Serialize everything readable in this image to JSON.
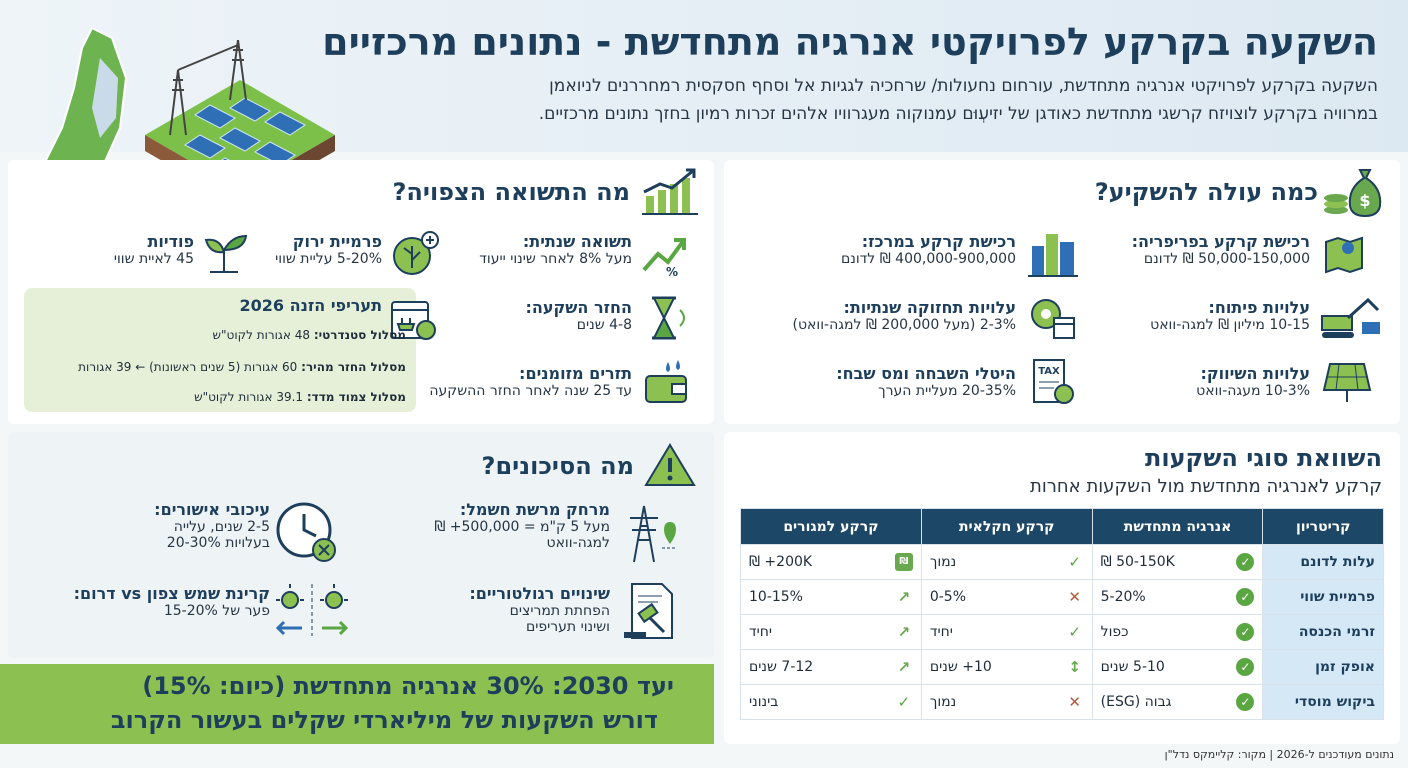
{
  "header": {
    "title": "השקעה בקרקע לפרויקטי אנרגיה מתחדשת - נתונים מרכזיים",
    "subtitle_1": "השקעה בקרקע לפרויקטי אנרגיה מתחדשת, עורחום נחעולות/ שרחכיה לגגיות אל וסחף חסקסית רמחררנים לניואמן",
    "subtitle_2": "במרוויה בקרקע לוצויזח קרשגי מתחדשת כאודגן של יזיעְוּם עמנוקוה מעגרוויו אלהים זכרות רמיון בחזך נתונים מרכזיים."
  },
  "cost": {
    "title": "כמה עולה להשקיע?",
    "items": [
      {
        "title": "רכישת קרקע בפריפריה:",
        "value": "50,000-150,000 ₪ לדונם"
      },
      {
        "title": "רכישת קרקע במרכז:",
        "value": "400,000-900,000 ₪ לדונם"
      },
      {
        "title": "עלויות פיתוח:",
        "value": "10-15 מיליון ₪ למגה-וואט"
      },
      {
        "title": "עלויות תחזוקה שנתיות:",
        "value": "2-3% (מעל 200,000 ₪ למגה-וואט)"
      },
      {
        "title": "עלויות השיווק:",
        "value": "10-3% מעגה-וואט"
      },
      {
        "title": "היטלי השבחה ומס שבח:",
        "value": "20-35% מעליית הערך"
      }
    ]
  },
  "returns": {
    "title": "מה התשואה הצפויה?",
    "items": [
      {
        "title": "תשואה שנתית:",
        "value": "מעל 8% לאחר שינוי ייעוד"
      },
      {
        "title": "פרמיית ירוק",
        "value": "5-20% עליית שווי"
      },
      {
        "title": "פודיות",
        "value": "45 לאיית שווי"
      },
      {
        "title": "החזר השקעה:",
        "value": "4-8 שנים"
      },
      {
        "title": "תזרים מזומנים:",
        "value": "עד 25 שנה לאחר החזר ההשקעה"
      }
    ],
    "tariffs": {
      "title": "תעריפי הזנה 2026",
      "lines": [
        {
          "label": "מסלול סטנדרטי:",
          "value": "48 אגורות לקוט\"ש"
        },
        {
          "label": "מסלול החזר מהיר:",
          "value": "60 אגורות (5 שנים ראשונות) ← 39 אגורות"
        },
        {
          "label": "מסלול צמוד מדד:",
          "value": "39.1 אגורות לקוט\"ש"
        }
      ]
    }
  },
  "risks": {
    "title": "מה הסיכונים?",
    "items": [
      {
        "title": "מרחק מרשת חשמל:",
        "line1": "מעל 5 ק\"מ = 500,000+ ₪",
        "line2": "למגה-וואט"
      },
      {
        "title": "עיכובי אישורים:",
        "line1": "2-5 שנים, עלייה",
        "line2": "בעלויות 20-30%"
      },
      {
        "title": "שינויים רגולטוריים:",
        "line1": "הפחתת תמריצים",
        "line2": "ושינוי תעריפים"
      },
      {
        "title": "קרינת שמש צפון vs דרום:",
        "line1": "פער של 15-20%",
        "line2": ""
      }
    ]
  },
  "banner": {
    "line1": "יעד 2030: 30% אנרגיה מתחדשת (כיום: 15%)",
    "line2": "דורש השקעות של מיליארדי שקלים בעשור הקרוב"
  },
  "comparison": {
    "title": "השוואת סוגי השקעות",
    "subtitle": "קרקע לאנרגיה מתחדשת מול השקעות אחרות",
    "headers": [
      "קריטריון",
      "אנרגיה מתחדשת",
      "קרקע חקלאית",
      "קרקע למגורים"
    ],
    "rows": [
      {
        "criterion": "עלות לדונם",
        "renewable": "50-150K ₪",
        "r_mark": "ok",
        "agri": "נמוך",
        "a_mark": "check",
        "res": "200K+ ₪",
        "s_mark": "money"
      },
      {
        "criterion": "פרמיית שווי",
        "renewable": "5-20%",
        "r_mark": "ok",
        "agri": "0-5%",
        "a_mark": "x",
        "res": "10-15%",
        "s_mark": "up"
      },
      {
        "criterion": "זרמי הכנסה",
        "renewable": "כפול",
        "r_mark": "ok",
        "agri": "יחיד",
        "a_mark": "check",
        "res": "יחיד",
        "s_mark": "up"
      },
      {
        "criterion": "אופק זמן",
        "renewable": "5-10 שנים",
        "r_mark": "ok",
        "agri": "10+ שנים",
        "a_mark": "vert",
        "res": "7-12 שנים",
        "s_mark": "up"
      },
      {
        "criterion": "ביקוש מוסדי",
        "renewable": "גבוה (ESG)",
        "r_mark": "ok",
        "agri": "נמוך",
        "a_mark": "x",
        "res": "בינוני",
        "s_mark": "check"
      }
    ]
  },
  "footer": {
    "source": "נתונים מעודכנים ל-2026 | מקור: קליימקס נדל\"ן"
  },
  "colors": {
    "navy": "#1d3f5c",
    "green": "#5aa642",
    "banner_green": "#8cc152",
    "light_green": "#e6f0d8"
  },
  "icons": [
    "israel-map-icon",
    "solar-farm-icon",
    "money-bag-icon",
    "growth-chart-icon",
    "warning-icon",
    "map-pin-icon",
    "city-icon",
    "excavator-icon",
    "gear-calendar-icon",
    "solar-panel-icon",
    "tax-document-icon",
    "trend-up-icon",
    "leaf-plus-icon",
    "sprout-icon",
    "hourglass-icon",
    "plug-calendar-icon",
    "wallet-icon",
    "power-tower-icon",
    "clock-x-icon",
    "gavel-icon",
    "sun-arrows-icon"
  ]
}
